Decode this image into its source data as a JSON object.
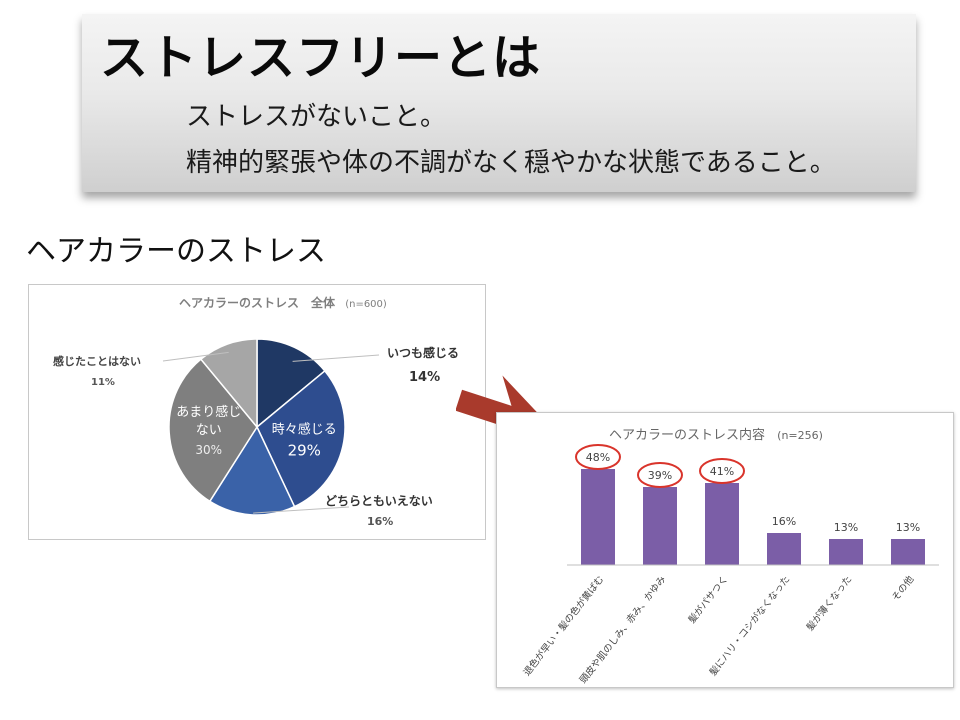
{
  "slide": {
    "title": "ストレスフリーとは",
    "definition_lines": [
      "ストレスがないこと。",
      "精神的緊張や体の不調がなく穏やかな状態であること。"
    ],
    "section_heading": "ヘアカラーのストレス"
  },
  "chart_data": [
    {
      "type": "pie",
      "title": "ヘアカラーのストレス　全体",
      "sample_note": "(n=600)",
      "slices": [
        {
          "label": "いつも感じる",
          "value": 14,
          "value_label": "14%",
          "color": "#1f3864"
        },
        {
          "label": "時々感じる",
          "value": 29,
          "value_label": "29%",
          "color": "#2e4d8f"
        },
        {
          "label": "どちらともいえない",
          "value": 16,
          "value_label": "16%",
          "color": "#3a62a8"
        },
        {
          "label": "あまり感じない",
          "value": 30,
          "value_label": "30%",
          "color": "#7f7f7f"
        },
        {
          "label": "感じたことはない",
          "value": 11,
          "value_label": "11%",
          "color": "#a6a6a6"
        }
      ]
    },
    {
      "type": "bar",
      "title": "ヘアカラーのストレス内容",
      "sample_note": "(n=256)",
      "categories": [
        "退色が早い・髪の色が黄ばむ",
        "頭皮や肌のしみ、赤み、かゆみ",
        "髪がパサつく",
        "髪にハリ・コシがなくなった",
        "髪が薄くなった",
        "その他"
      ],
      "values": [
        48,
        39,
        41,
        16,
        13,
        13
      ],
      "value_labels": [
        "48%",
        "39%",
        "41%",
        "16%",
        "13%",
        "13%"
      ],
      "highlighted": [
        true,
        true,
        true,
        false,
        false,
        false
      ],
      "bar_color": "#7b5ea7",
      "highlight_color": "#d9342b",
      "ylim": [
        0,
        60
      ]
    }
  ],
  "arrow": {
    "color": "#a93a2c"
  }
}
